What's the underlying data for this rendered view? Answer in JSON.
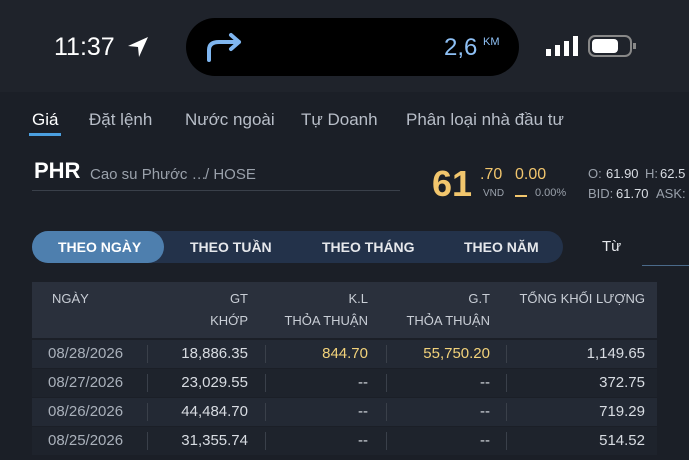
{
  "status_bar": {
    "time": "11:37",
    "distance": "2,6",
    "distance_unit": "KM"
  },
  "tabs": [
    "Giá",
    "Đặt lệnh",
    "Nước ngoài",
    "Tự Doanh",
    "Phân loại nhà đầu tư"
  ],
  "stock": {
    "symbol": "PHR",
    "name": "Cao su Phước …",
    "exchange": "/ HOSE",
    "price_main": "61",
    "price_decimal": ".70",
    "currency": "VND",
    "change": "0.00",
    "change_pct": "0.00%",
    "open_label": "O:",
    "open": "61.90",
    "high_label": "H:",
    "high": "62.5",
    "bid_label": "BID:",
    "bid": "61.70",
    "ask_label": "ASK:"
  },
  "periods": [
    "THEO NGÀY",
    "THEO TUẦN",
    "THEO THÁNG",
    "THEO NĂM"
  ],
  "from_label": "Từ",
  "table": {
    "headers": [
      [
        "NGÀY"
      ],
      [
        "GT",
        "KHỚP"
      ],
      [
        "K.L",
        "THỎA THUẬN"
      ],
      [
        "G.T",
        "THỎA THUẬN"
      ],
      [
        "TỔNG KHỐI LƯỢNG"
      ]
    ],
    "rows": [
      [
        "08/28/2026",
        "18,886.35",
        "844.70",
        "55,750.20",
        "1,149.65"
      ],
      [
        "08/27/2026",
        "23,029.55",
        "--",
        "--",
        "372.75"
      ],
      [
        "08/26/2026",
        "44,484.70",
        "--",
        "--",
        "719.29"
      ],
      [
        "08/25/2026",
        "31,355.74",
        "--",
        "--",
        "514.52"
      ]
    ]
  }
}
